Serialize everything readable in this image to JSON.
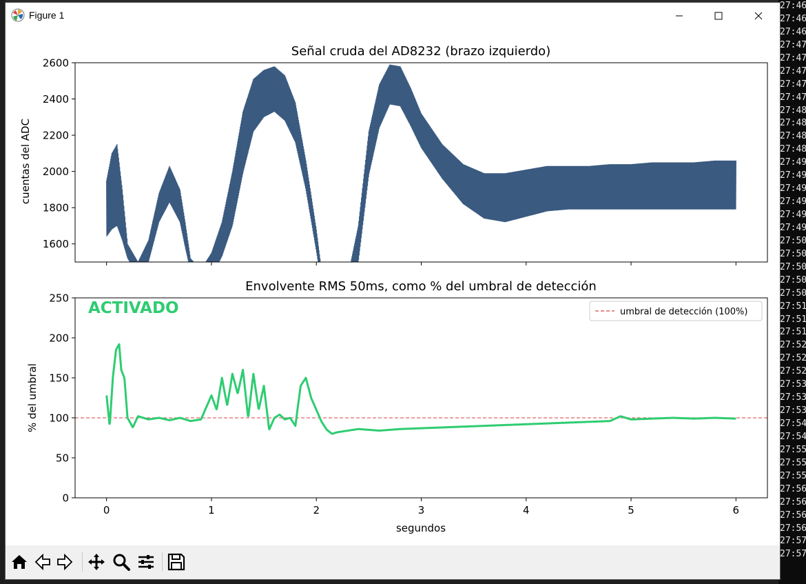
{
  "window": {
    "title": "Figure 1"
  },
  "terminal": {
    "lines": [
      "27:46",
      "27:46",
      "27:46",
      "27:47",
      "27:47",
      "27:47",
      "27:47",
      "27:47",
      "27:48",
      "27:48",
      "27:48",
      "27:48",
      "27:49",
      "27:49",
      "27:49",
      "27:49",
      "27:49",
      "27:49",
      "27:50",
      "27:50",
      "27:50",
      "27:50",
      "27:50",
      "27:51",
      "27:51",
      "27:51",
      "27:52",
      "27:52",
      "27:52",
      "27:53",
      "27:53",
      "27:53",
      "27:54",
      "27:54",
      "27:55",
      "27:55",
      "27:55",
      "27:56",
      "27:56",
      "27:56",
      "27:56",
      "27:57",
      "27:57"
    ]
  },
  "toolbar": {
    "icons": [
      "home-icon",
      "back-icon",
      "forward-icon",
      "pan-icon",
      "zoom-icon",
      "configure-subplots-icon",
      "save-icon"
    ]
  },
  "colors": {
    "raw_signal": "#3a5a80",
    "rms_envelope": "#2ecc71",
    "threshold": "#e06666",
    "activated_text": "#2ecc71"
  },
  "chart_data": [
    {
      "type": "line",
      "title": "Señal cruda del AD8232 (brazo izquierdo)",
      "xlabel": "",
      "ylabel": "cuentas del ADC",
      "xlim": [
        -0.3,
        6.3
      ],
      "ylim": [
        1500,
        2600
      ],
      "yticks": [
        "1600",
        "1800",
        "2000",
        "2200",
        "2400",
        "2600"
      ],
      "grid": false,
      "series": [
        {
          "kind": "oscillating_band",
          "x": [
            0.0,
            0.05,
            0.1,
            0.15,
            0.2,
            0.3,
            0.4,
            0.5,
            0.6,
            0.7,
            0.75,
            0.8,
            0.9,
            1.0,
            1.1,
            1.2,
            1.3,
            1.4,
            1.5,
            1.6,
            1.7,
            1.8,
            1.9,
            2.0,
            2.05,
            2.1,
            2.2,
            2.3,
            2.4,
            2.5,
            2.6,
            2.7,
            2.8,
            2.9,
            3.0,
            3.2,
            3.4,
            3.6,
            3.8,
            4.0,
            4.2,
            4.4,
            4.6,
            4.8,
            5.0,
            5.2,
            5.4,
            5.6,
            5.8,
            6.0
          ],
          "lower": [
            1640,
            1680,
            1700,
            1620,
            1520,
            1430,
            1500,
            1720,
            1830,
            1720,
            1580,
            1450,
            1400,
            1420,
            1530,
            1700,
            1990,
            2220,
            2300,
            2330,
            2280,
            2160,
            1900,
            1560,
            1380,
            1320,
            1260,
            1280,
            1500,
            1980,
            2240,
            2370,
            2360,
            2250,
            2130,
            1960,
            1820,
            1740,
            1720,
            1750,
            1780,
            1790,
            1790,
            1790,
            1790,
            1790,
            1790,
            1790,
            1790,
            1790
          ],
          "upper": [
            1950,
            2100,
            2150,
            1900,
            1600,
            1500,
            1620,
            1880,
            2030,
            1900,
            1720,
            1520,
            1460,
            1550,
            1720,
            2000,
            2330,
            2510,
            2560,
            2580,
            2530,
            2380,
            2060,
            1680,
            1450,
            1380,
            1320,
            1420,
            1700,
            2220,
            2480,
            2590,
            2580,
            2460,
            2320,
            2150,
            2040,
            1990,
            1990,
            2010,
            2030,
            2030,
            2030,
            2040,
            2040,
            2050,
            2050,
            2050,
            2060,
            2060
          ]
        }
      ]
    },
    {
      "type": "line",
      "title": "Envolvente RMS 50ms, como % del umbral de detección",
      "xlabel": "segundos",
      "ylabel": "% del umbral",
      "xlim": [
        -0.3,
        6.3
      ],
      "ylim": [
        0,
        250
      ],
      "xticks": [
        "0",
        "1",
        "2",
        "3",
        "4",
        "5",
        "6"
      ],
      "yticks": [
        "0",
        "50",
        "100",
        "150",
        "200",
        "250"
      ],
      "grid": false,
      "annotation": "ACTIVADO",
      "legend": {
        "location": "upper right",
        "entries": [
          "umbral de detección (100%)"
        ]
      },
      "threshold": 100,
      "series": [
        {
          "name": "",
          "x": [
            0.0,
            0.03,
            0.06,
            0.09,
            0.12,
            0.14,
            0.17,
            0.2,
            0.25,
            0.3,
            0.4,
            0.5,
            0.6,
            0.7,
            0.8,
            0.9,
            1.0,
            1.05,
            1.1,
            1.15,
            1.2,
            1.25,
            1.3,
            1.35,
            1.4,
            1.45,
            1.5,
            1.55,
            1.6,
            1.65,
            1.7,
            1.75,
            1.8,
            1.85,
            1.9,
            1.95,
            2.0,
            2.05,
            2.1,
            2.15,
            2.2,
            2.4,
            2.6,
            2.8,
            3.0,
            3.2,
            3.4,
            3.6,
            3.8,
            4.0,
            4.2,
            4.4,
            4.6,
            4.8,
            4.9,
            5.0,
            5.2,
            5.4,
            5.6,
            5.8,
            6.0
          ],
          "values": [
            128,
            90,
            150,
            185,
            192,
            160,
            150,
            100,
            88,
            102,
            98,
            100,
            97,
            100,
            96,
            98,
            128,
            110,
            150,
            115,
            155,
            130,
            160,
            100,
            155,
            110,
            140,
            85,
            100,
            104,
            98,
            100,
            90,
            140,
            150,
            125,
            110,
            95,
            85,
            80,
            82,
            86,
            84,
            86,
            87,
            88,
            89,
            90,
            91,
            92,
            93,
            94,
            95,
            96,
            102,
            98,
            99,
            100,
            99,
            100,
            99
          ]
        },
        {
          "name": "umbral de detección (100%)",
          "x": [
            -0.3,
            6.3
          ],
          "values": [
            100,
            100
          ]
        }
      ]
    }
  ]
}
